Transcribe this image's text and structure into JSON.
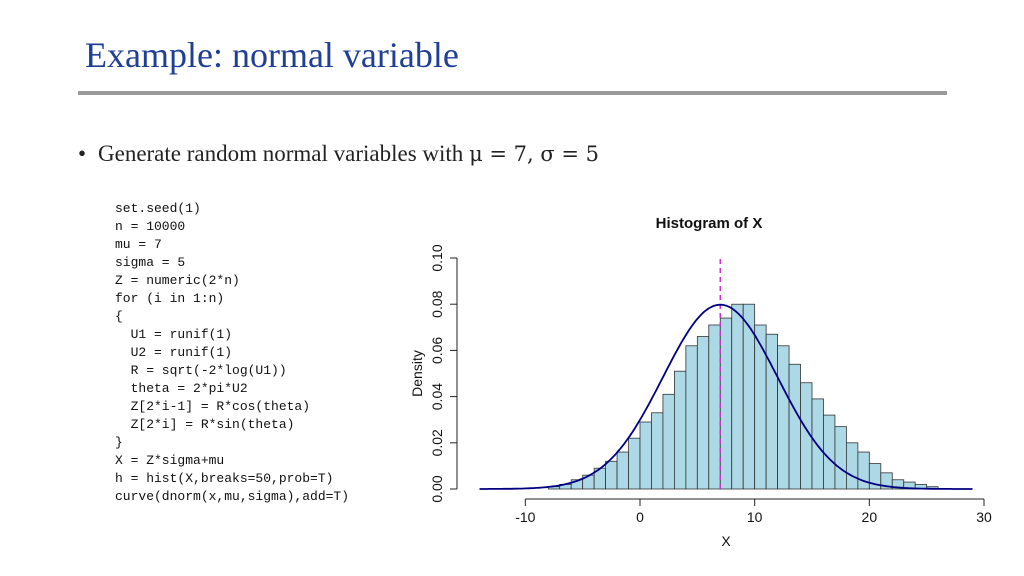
{
  "slide": {
    "title": "Example: normal variable",
    "bullet": {
      "symbol": "•",
      "text": "Generate random normal variables with ",
      "math": "μ = 7, σ = 5"
    },
    "code_lines": [
      "set.seed(1)",
      "n = 10000",
      "mu = 7",
      "sigma = 5",
      "Z = numeric(2*n)",
      "for (i in 1:n)",
      "{",
      "  U1 = runif(1)",
      "  U2 = runif(1)",
      "  R = sqrt(-2*log(U1))",
      "  theta = 2*pi*U2",
      "  Z[2*i-1] = R*cos(theta)",
      "  Z[2*i] = R*sin(theta)",
      "}",
      "X = Z*sigma+mu",
      "h = hist(X,breaks=50,prob=T)",
      "curve(dnorm(x,mu,sigma),add=T)"
    ]
  },
  "colors": {
    "title": "#1f3f95",
    "rule": "#9a9a9a",
    "bar_fill": "#add8e6",
    "curve": "#000080",
    "mean_line": "#cc33cc"
  },
  "chart_data": {
    "type": "bar",
    "title": "Histogram of X",
    "xlabel": "X",
    "ylabel": "Density",
    "xlim": [
      -15,
      30
    ],
    "ylim": [
      0,
      0.1
    ],
    "xticks": [
      "-10",
      "0",
      "10",
      "20",
      "30"
    ],
    "yticks": [
      "0.00",
      "0.02",
      "0.04",
      "0.06",
      "0.08",
      "0.10"
    ],
    "bin_width": 1,
    "bin_edges_start": -8,
    "values": [
      0.001,
      0.002,
      0.004,
      0.006,
      0.009,
      0.012,
      0.016,
      0.022,
      0.029,
      0.033,
      0.041,
      0.051,
      0.062,
      0.066,
      0.071,
      0.074,
      0.08,
      0.08,
      0.071,
      0.067,
      0.062,
      0.054,
      0.046,
      0.039,
      0.032,
      0.027,
      0.02,
      0.016,
      0.011,
      0.007,
      0.004,
      0.003,
      0.002,
      0.001
    ],
    "curve": {
      "type": "normal-density",
      "mean": 7,
      "sd": 5,
      "x_range": [
        -14,
        29
      ]
    },
    "mean_line": 7
  }
}
